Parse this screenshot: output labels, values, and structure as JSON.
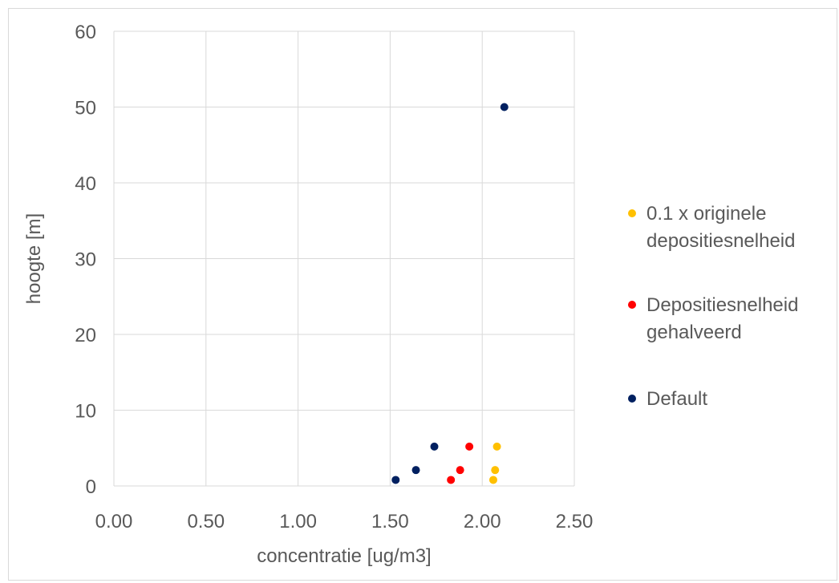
{
  "chart_data": {
    "type": "scatter",
    "xlabel": "concentratie [ug/m3]",
    "ylabel": "hoogte [m]",
    "xlim": [
      0,
      2.5
    ],
    "ylim": [
      0,
      60
    ],
    "x_ticks": [
      "0.00",
      "0.50",
      "1.00",
      "1.50",
      "2.00",
      "2.50"
    ],
    "y_ticks": [
      "0",
      "10",
      "20",
      "30",
      "40",
      "50",
      "60"
    ],
    "grid": true,
    "legend_position": "right",
    "series": [
      {
        "name_lines": [
          "0.1 x originele",
          "depositiesnelheid"
        ],
        "color": "#FFC000",
        "points": [
          [
            2.06,
            0.8
          ],
          [
            2.07,
            2.1
          ],
          [
            2.08,
            5.2
          ]
        ]
      },
      {
        "name_lines": [
          "Depositiesnelheid",
          "gehalveerd"
        ],
        "color": "#FF0000",
        "points": [
          [
            1.83,
            0.8
          ],
          [
            1.88,
            2.1
          ],
          [
            1.93,
            5.2
          ]
        ]
      },
      {
        "name_lines": [
          "Default"
        ],
        "color": "#002060",
        "points": [
          [
            1.53,
            0.8
          ],
          [
            1.64,
            2.1
          ],
          [
            1.74,
            5.2
          ],
          [
            2.12,
            50
          ]
        ]
      }
    ]
  }
}
